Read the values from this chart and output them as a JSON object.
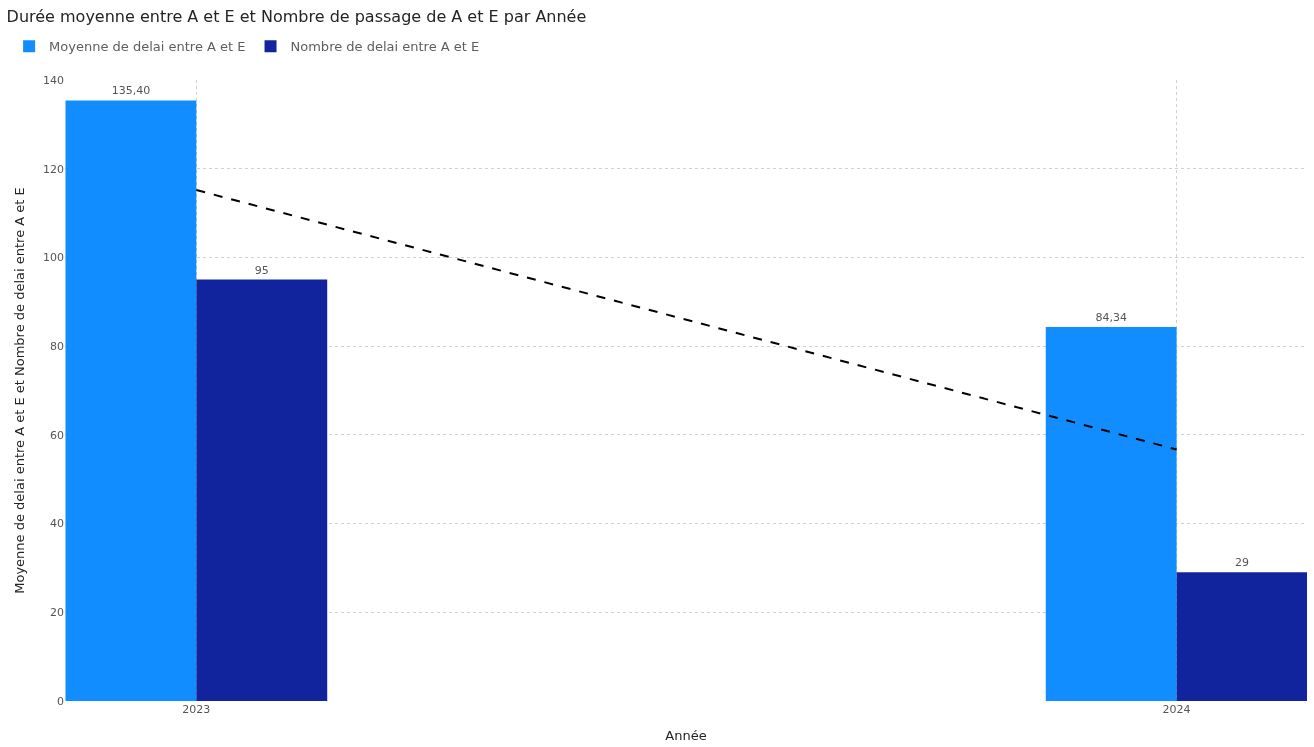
{
  "chart_data": {
    "type": "bar",
    "title": "Durée moyenne entre A et E et Nombre de passage de A et E par Année",
    "xlabel": "Année",
    "ylabel": "Moyenne de delai entre A et E et Nombre de delai entre A et E",
    "x": [
      2023,
      2024
    ],
    "series": [
      {
        "name": "Moyenne de delai entre A et E",
        "color": "#118dff",
        "values": [
          135.4,
          84.34
        ],
        "value_labels": [
          "135,40",
          "84,34"
        ]
      },
      {
        "name": "Nombre de delai entre A et E",
        "color": "#12239e",
        "values": [
          95,
          29
        ],
        "value_labels": [
          "95",
          "29"
        ]
      },
      {
        "type": "line",
        "color": "#000000",
        "line_style": "dashed",
        "values": [
          115.2,
          56.7
        ]
      }
    ],
    "xlim": [
      2022.866,
      2024.133
    ],
    "xticks": [
      2023,
      2024
    ],
    "ylim": [
      0,
      140
    ],
    "yticks": [
      0,
      20,
      40,
      60,
      80,
      100,
      120,
      140
    ],
    "grid": true,
    "legend": "top left"
  }
}
